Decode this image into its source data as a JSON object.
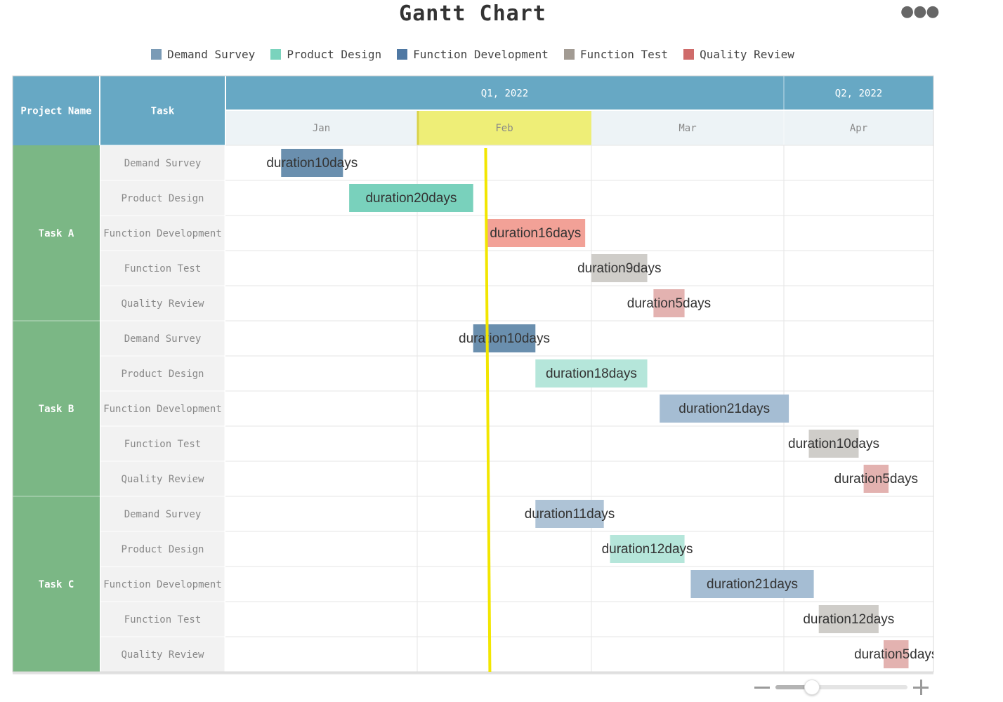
{
  "title": "Gantt Chart",
  "more_icon": "more-horizontal-icon",
  "zoom": {
    "minus_icon": "minus-icon",
    "plus_icon": "plus-icon",
    "level": 0.27
  },
  "chart_data": {
    "type": "gantt",
    "title": "Gantt Chart",
    "year": 2022,
    "header": {
      "project_col": "Project Name",
      "task_col": "Task",
      "quarters": [
        {
          "label": "Q1, 2022",
          "months": [
            "Jan",
            "Feb",
            "Mar"
          ]
        },
        {
          "label": "Q2, 2022",
          "months": [
            "Apr"
          ]
        }
      ],
      "highlight_month": "Feb",
      "highlight_color": "#eeee77"
    },
    "x_range_days": [
      0,
      113
    ],
    "today_marker_day": 42,
    "legend": [
      {
        "name": "Demand Survey",
        "color": "#7a9bb6"
      },
      {
        "name": "Product Design",
        "color": "#7ad3bd"
      },
      {
        "name": "Function Development",
        "color": "#4f78a3"
      },
      {
        "name": "Function Test",
        "color": "#a29b93"
      },
      {
        "name": "Quality Review",
        "color": "#cf6b6a"
      }
    ],
    "projects": [
      {
        "name": "Task A",
        "tasks": [
          {
            "name": "Demand Survey",
            "label": "duration10days",
            "start": 9,
            "duration": 10,
            "color": "#6a8fae"
          },
          {
            "name": "Product Design",
            "label": "duration20days",
            "start": 20,
            "duration": 20,
            "color": "#79d1bc"
          },
          {
            "name": "Function Development",
            "label": "duration16days",
            "start": 42,
            "duration": 16,
            "color": "#f2a197"
          },
          {
            "name": "Function Test",
            "label": "duration9days",
            "start": 59,
            "duration": 9,
            "color": "#cfcdc9"
          },
          {
            "name": "Quality Review",
            "label": "duration5days",
            "start": 69,
            "duration": 5,
            "color": "#e3b2b0"
          }
        ]
      },
      {
        "name": "Task B",
        "tasks": [
          {
            "name": "Demand Survey",
            "label": "duration10days",
            "start": 40,
            "duration": 10,
            "color": "#6a8fae"
          },
          {
            "name": "Product Design",
            "label": "duration18days",
            "start": 50,
            "duration": 18,
            "color": "#b5e6da"
          },
          {
            "name": "Function Development",
            "label": "duration21days",
            "start": 70,
            "duration": 21,
            "color": "#a5bdd3"
          },
          {
            "name": "Function Test",
            "label": "duration10days",
            "start": 95,
            "duration": 10,
            "color": "#cfcdc9"
          },
          {
            "name": "Quality Review",
            "label": "duration5days",
            "start": 106,
            "duration": 5,
            "color": "#e3b2b0"
          }
        ]
      },
      {
        "name": "Task C",
        "tasks": [
          {
            "name": "Demand Survey",
            "label": "duration11days",
            "start": 50,
            "duration": 11,
            "color": "#aec3d6"
          },
          {
            "name": "Product Design",
            "label": "duration12days",
            "start": 62,
            "duration": 12,
            "color": "#b5e6da"
          },
          {
            "name": "Function Development",
            "label": "duration21days",
            "start": 75,
            "duration": 21,
            "color": "#a5bdd3"
          },
          {
            "name": "Function Test",
            "label": "duration12days",
            "start": 97,
            "duration": 12,
            "color": "#cfcdc9"
          },
          {
            "name": "Quality Review",
            "label": "duration5days",
            "start": 110,
            "duration": 5,
            "color": "#e3b2b0"
          }
        ]
      }
    ]
  },
  "colors": {
    "header_bg": "#67a8c4",
    "month_bg": "#edf3f6",
    "project_bg": "#7bb785",
    "task_bg": "#f2f2f2",
    "grid": "#e6e6e6",
    "today_line": "#f2e600"
  }
}
